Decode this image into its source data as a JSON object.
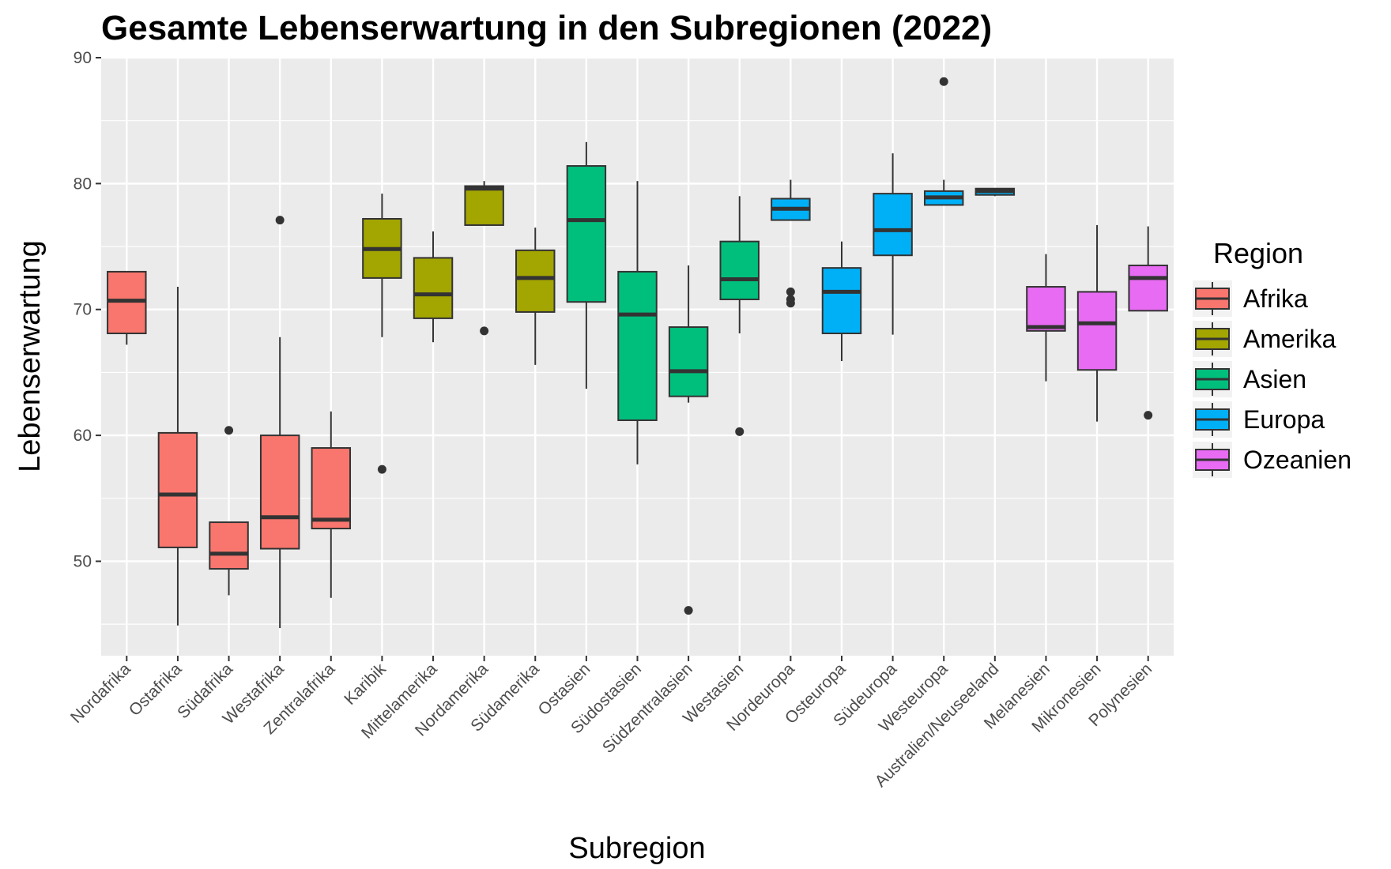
{
  "chart_data": {
    "type": "boxplot",
    "title": "Gesamte Lebenserwartung in den Subregionen (2022)",
    "xlabel": "Subregion",
    "ylabel": "Lebenserwartung",
    "ylim": [
      42.5,
      90
    ],
    "yticks": [
      50,
      60,
      70,
      80,
      90
    ],
    "grid": true,
    "legend": {
      "title": "Region",
      "position": "right",
      "entries": [
        {
          "name": "Afrika",
          "color": "#F8766D"
        },
        {
          "name": "Amerika",
          "color": "#A3A500"
        },
        {
          "name": "Asien",
          "color": "#00BF7D"
        },
        {
          "name": "Europa",
          "color": "#00B0F6"
        },
        {
          "name": "Ozeanien",
          "color": "#E76BF3"
        }
      ]
    },
    "categories": [
      {
        "name": "Nordafrika",
        "region": "Afrika",
        "q1": 68.1,
        "median": 70.7,
        "q3": 73.0,
        "lower": 67.2,
        "upper": 73.0,
        "outliers": []
      },
      {
        "name": "Ostafrika",
        "region": "Afrika",
        "q1": 51.1,
        "median": 55.3,
        "q3": 60.2,
        "lower": 44.9,
        "upper": 71.8,
        "outliers": []
      },
      {
        "name": "Südafrika",
        "region": "Afrika",
        "q1": 49.4,
        "median": 50.6,
        "q3": 53.1,
        "lower": 47.3,
        "upper": 53.1,
        "outliers": [
          60.4
        ]
      },
      {
        "name": "Westafrika",
        "region": "Afrika",
        "q1": 51.0,
        "median": 53.5,
        "q3": 60.0,
        "lower": 44.7,
        "upper": 67.8,
        "outliers": [
          77.1
        ]
      },
      {
        "name": "Zentralafrika",
        "region": "Afrika",
        "q1": 52.6,
        "median": 53.3,
        "q3": 59.0,
        "lower": 47.1,
        "upper": 61.9,
        "outliers": []
      },
      {
        "name": "Karibik",
        "region": "Amerika",
        "q1": 72.5,
        "median": 74.8,
        "q3": 77.2,
        "lower": 67.8,
        "upper": 79.2,
        "outliers": [
          57.3
        ]
      },
      {
        "name": "Mittelamerika",
        "region": "Amerika",
        "q1": 69.3,
        "median": 71.2,
        "q3": 74.1,
        "lower": 67.4,
        "upper": 76.2,
        "outliers": []
      },
      {
        "name": "Nordamerika",
        "region": "Amerika",
        "q1": 76.7,
        "median": 79.6,
        "q3": 79.8,
        "lower": 76.7,
        "upper": 80.2,
        "outliers": [
          68.3
        ]
      },
      {
        "name": "Südamerika",
        "region": "Amerika",
        "q1": 69.8,
        "median": 72.5,
        "q3": 74.7,
        "lower": 65.6,
        "upper": 76.5,
        "outliers": []
      },
      {
        "name": "Ostasien",
        "region": "Asien",
        "q1": 70.6,
        "median": 77.1,
        "q3": 81.4,
        "lower": 63.7,
        "upper": 83.3,
        "outliers": []
      },
      {
        "name": "Südostasien",
        "region": "Asien",
        "q1": 61.2,
        "median": 69.6,
        "q3": 73.0,
        "lower": 57.7,
        "upper": 80.2,
        "outliers": []
      },
      {
        "name": "Südzentralasien",
        "region": "Asien",
        "q1": 63.1,
        "median": 65.1,
        "q3": 68.6,
        "lower": 62.6,
        "upper": 73.5,
        "outliers": [
          46.1
        ]
      },
      {
        "name": "Westasien",
        "region": "Asien",
        "q1": 70.8,
        "median": 72.4,
        "q3": 75.4,
        "lower": 68.1,
        "upper": 79.0,
        "outliers": [
          60.3
        ]
      },
      {
        "name": "Nordeuropa",
        "region": "Europa",
        "q1": 77.1,
        "median": 78.0,
        "q3": 78.8,
        "lower": 77.1,
        "upper": 80.3,
        "outliers": [
          71.4,
          70.8,
          70.5
        ]
      },
      {
        "name": "Osteuropa",
        "region": "Europa",
        "q1": 68.1,
        "median": 71.4,
        "q3": 73.3,
        "lower": 65.9,
        "upper": 75.4,
        "outliers": []
      },
      {
        "name": "Südeuropa",
        "region": "Europa",
        "q1": 74.3,
        "median": 76.3,
        "q3": 79.2,
        "lower": 68.0,
        "upper": 82.4,
        "outliers": []
      },
      {
        "name": "Westeuropa",
        "region": "Europa",
        "q1": 78.3,
        "median": 78.9,
        "q3": 79.4,
        "lower": 78.3,
        "upper": 80.3,
        "outliers": [
          88.1
        ]
      },
      {
        "name": "Australien/Neuseeland",
        "region": "Europa",
        "q1": 79.1,
        "median": 79.4,
        "q3": 79.6,
        "lower": 79.0,
        "upper": 79.6,
        "outliers": []
      },
      {
        "name": "Melanesien",
        "region": "Ozeanien",
        "q1": 68.3,
        "median": 68.6,
        "q3": 71.8,
        "lower": 64.3,
        "upper": 74.4,
        "outliers": []
      },
      {
        "name": "Mikronesien",
        "region": "Ozeanien",
        "q1": 65.2,
        "median": 68.9,
        "q3": 71.4,
        "lower": 61.1,
        "upper": 76.7,
        "outliers": []
      },
      {
        "name": "Polynesien",
        "region": "Ozeanien",
        "q1": 69.9,
        "median": 72.5,
        "q3": 73.5,
        "lower": 69.9,
        "upper": 76.6,
        "outliers": [
          61.6
        ]
      }
    ]
  }
}
